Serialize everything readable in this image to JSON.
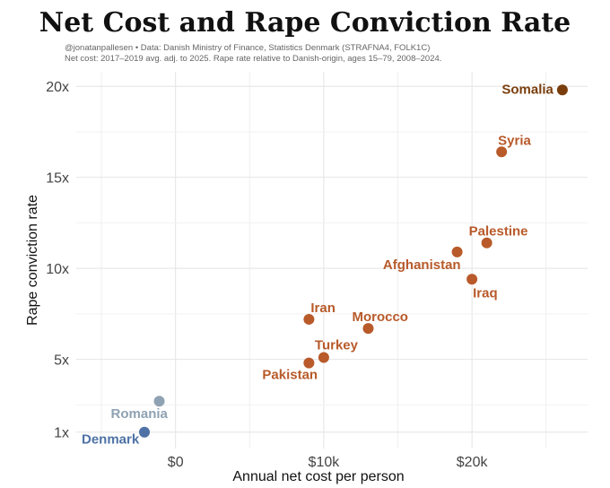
{
  "chart_data": {
    "type": "scatter",
    "title": "Net Cost and Rape Conviction Rate",
    "subtitle_lines": [
      "@jonatanpallesen • Data: Danish Ministry of Finance, Statistics Denmark (STRAFNA4, FOLK1C)",
      "Net cost: 2017–2019 avg. adj. to 2025. Rape rate relative to Danish-origin, ages 15–79, 2008–2024."
    ],
    "xlabel": "Annual net cost per person",
    "ylabel": "Rape conviction rate",
    "xlim": [
      -6700,
      27800
    ],
    "ylim": [
      0.1,
      20.8
    ],
    "x_ticks": [
      {
        "value": 0,
        "label": "$0"
      },
      {
        "value": 10000,
        "label": "$10k"
      },
      {
        "value": 20000,
        "label": "$20k"
      }
    ],
    "y_ticks": [
      {
        "value": 1,
        "label": "1x"
      },
      {
        "value": 5,
        "label": "5x"
      },
      {
        "value": 10,
        "label": "10x"
      },
      {
        "value": 15,
        "label": "15x"
      },
      {
        "value": 20,
        "label": "20x"
      }
    ],
    "grid": true,
    "points": [
      {
        "label": "Somalia",
        "x": 26100,
        "y": 19.8,
        "color": "#7a3e0c"
      },
      {
        "label": "Syria",
        "x": 22000,
        "y": 16.4,
        "color": "#b85a2a"
      },
      {
        "label": "Palestine",
        "x": 21000,
        "y": 11.4,
        "color": "#b85a2a"
      },
      {
        "label": "Afghanistan",
        "x": 19000,
        "y": 10.9,
        "color": "#b85a2a"
      },
      {
        "label": "Iraq",
        "x": 20000,
        "y": 9.4,
        "color": "#b85a2a"
      },
      {
        "label": "Iran",
        "x": 9000,
        "y": 7.2,
        "color": "#b85a2a"
      },
      {
        "label": "Morocco",
        "x": 13000,
        "y": 6.7,
        "color": "#b85a2a"
      },
      {
        "label": "Turkey",
        "x": 10000,
        "y": 5.1,
        "color": "#b85a2a"
      },
      {
        "label": "Pakistan",
        "x": 9000,
        "y": 4.8,
        "color": "#b85a2a"
      },
      {
        "label": "Romania",
        "x": -1100,
        "y": 2.7,
        "color": "#8fa2b3"
      },
      {
        "label": "Denmark",
        "x": -2100,
        "y": 1.0,
        "color": "#4e72a6"
      }
    ]
  }
}
